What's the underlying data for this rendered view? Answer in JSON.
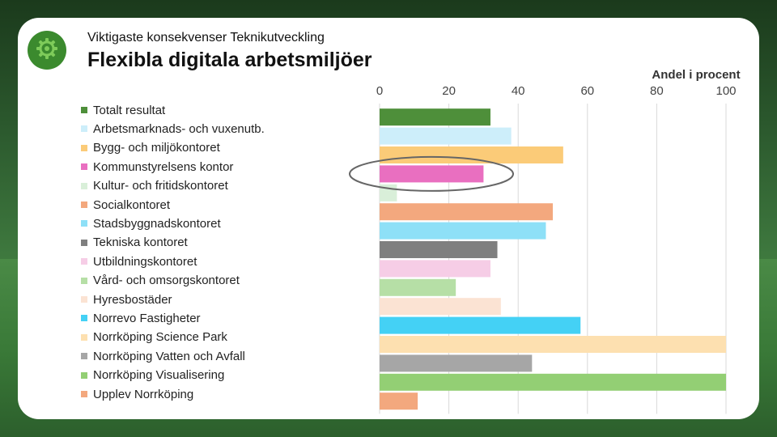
{
  "header": {
    "subtitle": "Viktigaste konsekvenser Teknikutveckling",
    "title": "Flexibla digitala arbetsmiljöer",
    "logo_icon": "gear-icon"
  },
  "chart_data": {
    "type": "bar",
    "orientation": "horizontal",
    "title": "Flexibla digitala arbetsmiljöer",
    "xlabel": "Andel i procent",
    "ylabel": "",
    "xlim": [
      0,
      100
    ],
    "ticks": [
      "0",
      "20",
      "40",
      "60",
      "80",
      "100"
    ],
    "grid": true,
    "legend_position": "left",
    "highlight_category": "Kommunstyrelsens kontor",
    "categories": [
      "Totalt resultat",
      "Arbetsmarknads- och vuxenutb.",
      "Bygg- och miljökontoret",
      "Kommunstyrelsens kontor",
      "Kultur- och fritidskontoret",
      "Socialkontoret",
      "Stadsbyggnadskontoret",
      "Tekniska kontoret",
      "Utbildningskontoret",
      "Vård- och omsorgskontoret",
      "Hyresbostäder",
      "Norrevo Fastigheter",
      "Norrköping Science Park",
      "Norrköping Vatten och Avfall",
      "Norrköping Visualisering",
      "Upplev Norrköping"
    ],
    "values": [
      32,
      38,
      53,
      30,
      5,
      50,
      48,
      34,
      32,
      22,
      35,
      58,
      100,
      44,
      100,
      11
    ],
    "colors": [
      "#4e8f3a",
      "#cdeefa",
      "#fbcb78",
      "#e96fc0",
      "#d9efd9",
      "#f3a87e",
      "#8ee0f7",
      "#7f7f7f",
      "#f6cde6",
      "#b6dfa6",
      "#fbe3d3",
      "#44d1f5",
      "#fde0b0",
      "#a6a6a6",
      "#93cf74",
      "#f3a87e"
    ]
  }
}
